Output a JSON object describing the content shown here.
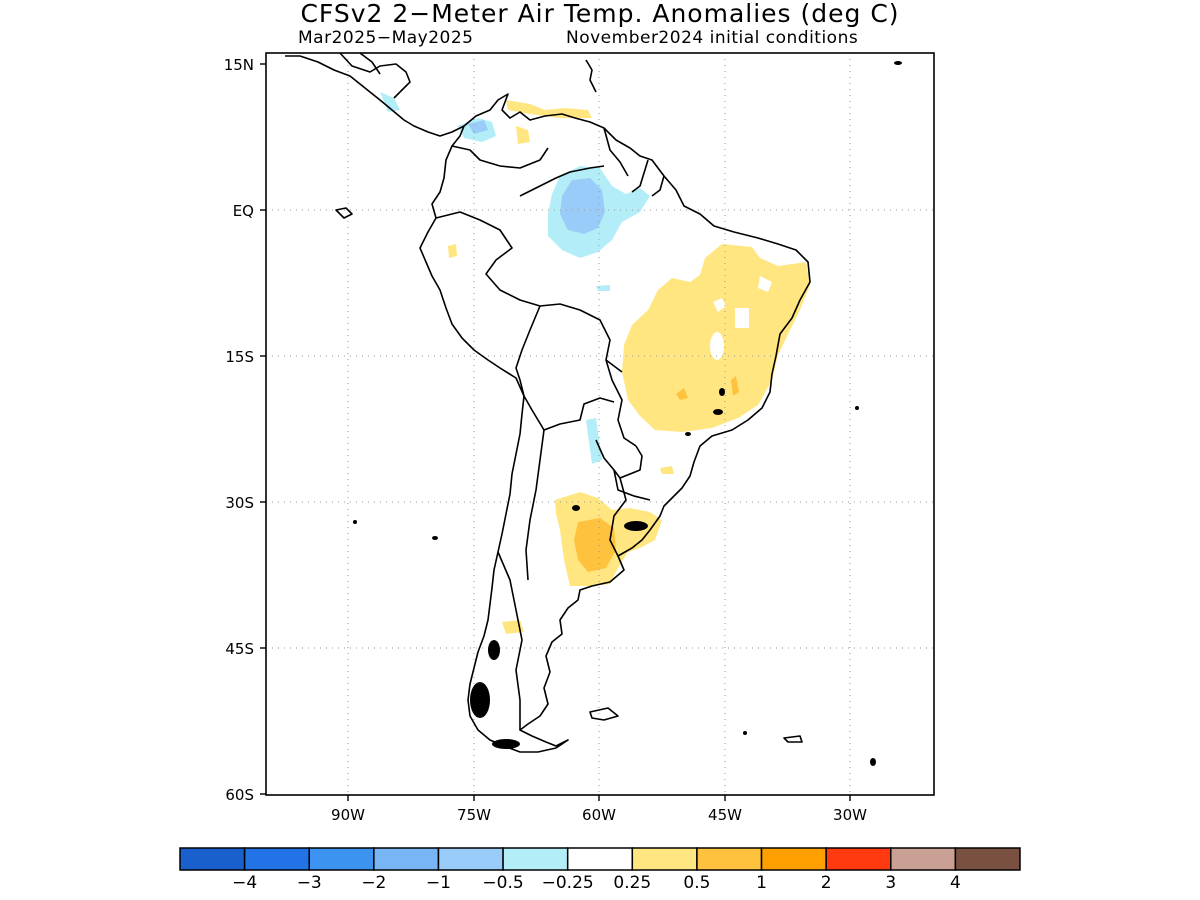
{
  "title": "CFSv2 2−Meter Air Temp. Anomalies (deg C)",
  "subtitle_left": "Mar2025−May2025",
  "subtitle_right": "November2024 initial conditions",
  "lat_labels": [
    "15N",
    "EQ",
    "15S",
    "30S",
    "45S",
    "60S"
  ],
  "lon_labels": [
    "90W",
    "75W",
    "60W",
    "45W",
    "30W"
  ],
  "legend": {
    "colors": [
      "#1a60cc",
      "#2173e6",
      "#3d94f0",
      "#78b5f5",
      "#99ccf8",
      "#b3eef8",
      "#ffffff",
      "#ffe680",
      "#ffc23e",
      "#ffa000",
      "#ff3a10",
      "#c9a093",
      "#7a5040"
    ],
    "labels": [
      "−4",
      "−3",
      "−2",
      "−1",
      "−0.5",
      "−0.25",
      "0.25",
      "0.5",
      "1",
      "2",
      "3",
      "4"
    ]
  }
}
